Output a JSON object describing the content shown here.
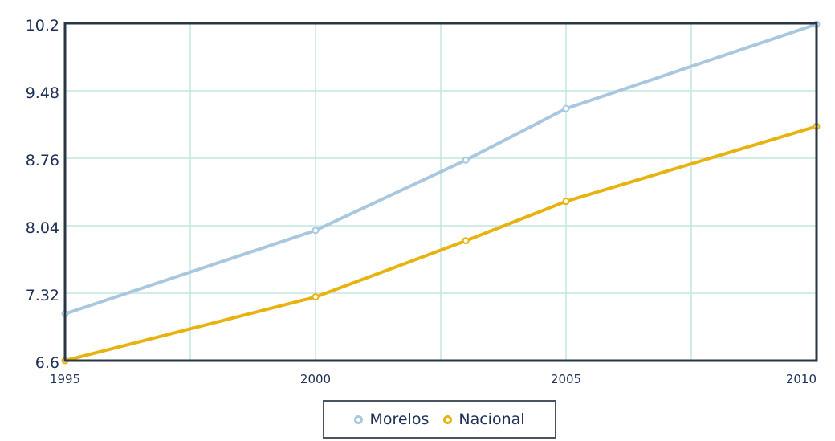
{
  "chart_data": {
    "type": "line",
    "title": "",
    "xlabel": "",
    "ylabel": "",
    "x_ticks": [
      "1995",
      "2000",
      "2005",
      "2010"
    ],
    "y_ticks": [
      "10.2",
      "9.48",
      "8.76",
      "8.04",
      "7.32",
      "6.6"
    ],
    "xlim": [
      1995,
      2010
    ],
    "ylim": [
      6.6,
      10.2
    ],
    "grid": true,
    "legend_position": "bottom-center",
    "series": [
      {
        "name": "Morelos",
        "color": "#a9c8e0",
        "x": [
          1995,
          2000,
          2003,
          2005,
          2010
        ],
        "y": [
          7.1,
          7.99,
          8.74,
          9.29,
          10.19
        ]
      },
      {
        "name": "Nacional",
        "color": "#e8b310",
        "x": [
          1995,
          2000,
          2003,
          2005,
          2010
        ],
        "y": [
          6.6,
          7.28,
          7.88,
          8.3,
          9.1
        ]
      }
    ]
  }
}
